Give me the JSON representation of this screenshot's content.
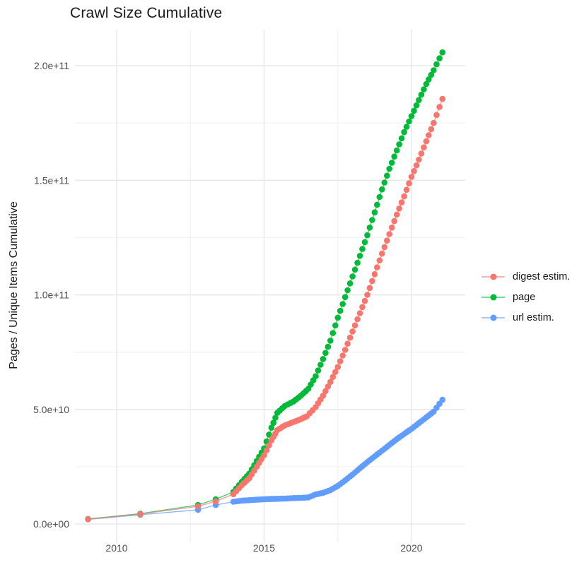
{
  "chart_data": {
    "type": "scatter",
    "title": "Crawl Size Cumulative",
    "xlabel": "",
    "ylabel": "Pages / Unique Items Cumulative",
    "legend_position": "right",
    "grid": true,
    "value_unit": "billions (1e9) of pages / unique items, cumulative",
    "x_ticks": [
      {
        "label": "2010",
        "value": 2010
      },
      {
        "label": "2015",
        "value": 2015
      },
      {
        "label": "2020",
        "value": 2020
      }
    ],
    "x_minor_ticks": [
      2012.5,
      2017.5
    ],
    "y_ticks": [
      {
        "label": "0.0e+00",
        "value_e9": 0
      },
      {
        "label": "5.0e+10",
        "value_e9": 50
      },
      {
        "label": "1.0e+11",
        "value_e9": 100
      },
      {
        "label": "1.5e+11",
        "value_e9": 150
      },
      {
        "label": "2.0e+11",
        "value_e9": 200
      }
    ],
    "y_minor_ticks_e9": [
      25,
      75,
      125,
      175
    ],
    "xlim": [
      2008.6,
      2021.85
    ],
    "ylim_e9": [
      -8,
      216
    ],
    "colors": {
      "background": "#ffffff",
      "grid_major": "#e8e8e8",
      "grid_minor": "#f3f3f3",
      "tick_label": "#4d4d4d",
      "text": "#1a1a1a"
    },
    "draw_order": [
      1,
      2,
      0
    ],
    "dense_from_year": 2013.9,
    "densify_subdivisions": 3,
    "series": [
      {
        "name": "digest estim.",
        "color": "#F8766D",
        "points": [
          [
            2009.03,
            2.1
          ],
          [
            2010.8,
            4.3
          ],
          [
            2012.76,
            7.7
          ],
          [
            2013.36,
            9.9
          ],
          [
            2013.96,
            13.0
          ],
          [
            2014.25,
            17.0
          ],
          [
            2014.5,
            20.0
          ],
          [
            2014.75,
            25.0
          ],
          [
            2015.0,
            30.0
          ],
          [
            2015.25,
            36.5
          ],
          [
            2015.45,
            41.0
          ],
          [
            2015.7,
            43.0
          ],
          [
            2016.0,
            44.5
          ],
          [
            2016.25,
            45.8
          ],
          [
            2016.45,
            47.0
          ],
          [
            2016.75,
            51.0
          ],
          [
            2017.0,
            56.0
          ],
          [
            2017.25,
            62.0
          ],
          [
            2017.5,
            68.5
          ],
          [
            2017.75,
            76.0
          ],
          [
            2018.0,
            84.0
          ],
          [
            2018.25,
            92.0
          ],
          [
            2018.5,
            100.0
          ],
          [
            2018.75,
            109.0
          ],
          [
            2019.0,
            118.0
          ],
          [
            2019.25,
            126.5
          ],
          [
            2019.5,
            135.0
          ],
          [
            2019.75,
            143.0
          ],
          [
            2020.0,
            151.5
          ],
          [
            2020.25,
            159.0
          ],
          [
            2020.5,
            167.0
          ],
          [
            2020.75,
            175.0
          ],
          [
            2021.05,
            185.5
          ]
        ]
      },
      {
        "name": "page",
        "color": "#00BA38",
        "points": [
          [
            2009.03,
            2.2
          ],
          [
            2010.8,
            4.5
          ],
          [
            2012.76,
            8.3
          ],
          [
            2013.36,
            10.8
          ],
          [
            2013.96,
            14.0
          ],
          [
            2014.25,
            18.5
          ],
          [
            2014.5,
            22.0
          ],
          [
            2014.75,
            27.5
          ],
          [
            2015.0,
            33.0
          ],
          [
            2015.25,
            42.0
          ],
          [
            2015.45,
            48.5
          ],
          [
            2015.7,
            51.5
          ],
          [
            2016.0,
            53.5
          ],
          [
            2016.25,
            56.0
          ],
          [
            2016.5,
            59.0
          ],
          [
            2016.75,
            64.5
          ],
          [
            2017.0,
            72.0
          ],
          [
            2017.25,
            80.0
          ],
          [
            2017.5,
            90.0
          ],
          [
            2017.75,
            99.0
          ],
          [
            2018.0,
            108.0
          ],
          [
            2018.25,
            117.0
          ],
          [
            2018.5,
            126.0
          ],
          [
            2018.75,
            136.0
          ],
          [
            2019.0,
            146.0
          ],
          [
            2019.25,
            155.0
          ],
          [
            2019.5,
            163.0
          ],
          [
            2019.75,
            171.0
          ],
          [
            2020.0,
            178.0
          ],
          [
            2020.25,
            185.0
          ],
          [
            2020.5,
            192.0
          ],
          [
            2020.75,
            198.0
          ],
          [
            2021.05,
            205.8
          ]
        ]
      },
      {
        "name": "url estim.",
        "color": "#619CFF",
        "points": [
          [
            2009.03,
            2.0
          ],
          [
            2010.8,
            4.0
          ],
          [
            2012.76,
            6.2
          ],
          [
            2013.36,
            8.3
          ],
          [
            2013.96,
            9.7
          ],
          [
            2014.25,
            10.2
          ],
          [
            2014.5,
            10.4
          ],
          [
            2014.75,
            10.6
          ],
          [
            2015.0,
            10.8
          ],
          [
            2015.25,
            10.9
          ],
          [
            2015.45,
            11.0
          ],
          [
            2015.7,
            11.1
          ],
          [
            2016.0,
            11.3
          ],
          [
            2016.25,
            11.4
          ],
          [
            2016.5,
            11.6
          ],
          [
            2016.75,
            12.9
          ],
          [
            2017.0,
            13.6
          ],
          [
            2017.25,
            14.8
          ],
          [
            2017.5,
            16.6
          ],
          [
            2017.75,
            19.0
          ],
          [
            2018.0,
            21.6
          ],
          [
            2018.25,
            24.3
          ],
          [
            2018.5,
            27.0
          ],
          [
            2018.75,
            29.5
          ],
          [
            2019.0,
            32.0
          ],
          [
            2019.25,
            34.5
          ],
          [
            2019.5,
            37.0
          ],
          [
            2019.75,
            39.3
          ],
          [
            2020.0,
            41.5
          ],
          [
            2020.25,
            44.0
          ],
          [
            2020.5,
            46.5
          ],
          [
            2020.75,
            49.0
          ],
          [
            2021.05,
            54.2
          ]
        ]
      }
    ]
  }
}
